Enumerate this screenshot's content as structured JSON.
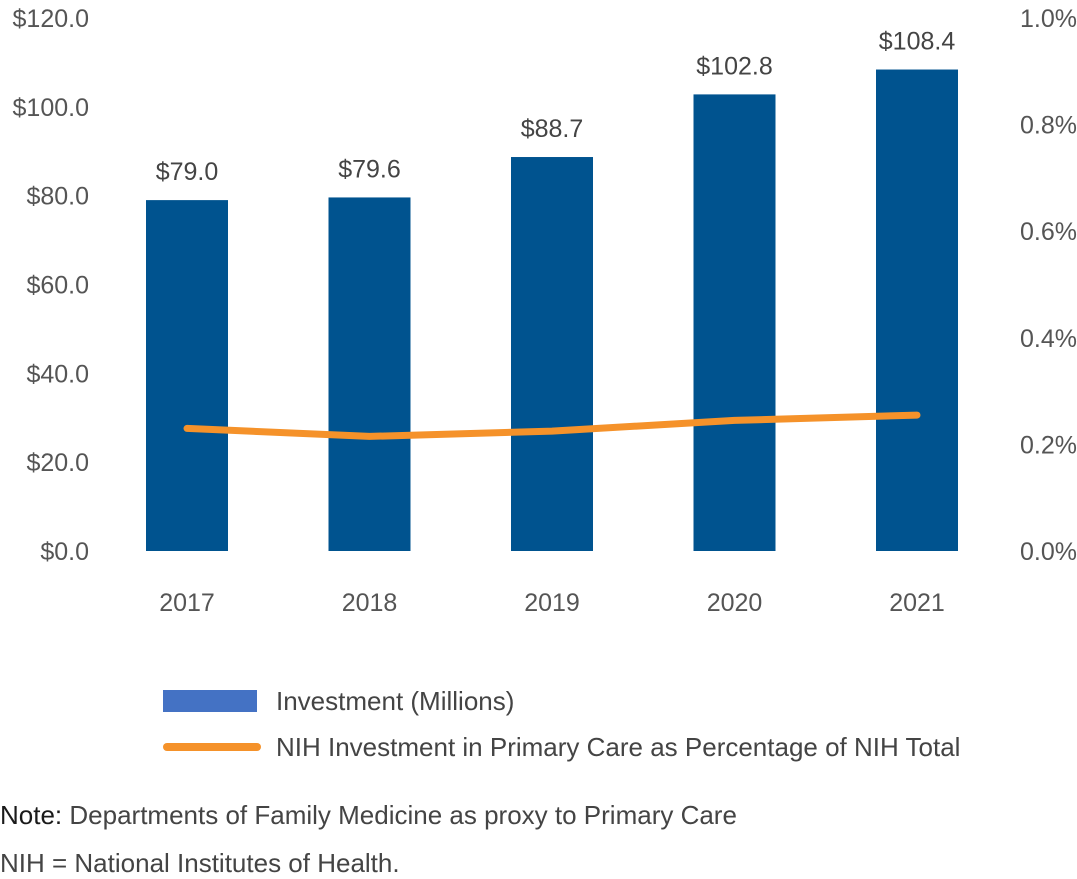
{
  "chart_data": {
    "type": "bar",
    "categories": [
      "2017",
      "2018",
      "2019",
      "2020",
      "2021"
    ],
    "series": [
      {
        "name": "Investment (Millions)",
        "type": "bar",
        "axis": "left",
        "values": [
          79.0,
          79.6,
          88.7,
          102.8,
          108.4
        ],
        "labels": [
          "$79.0",
          "$79.6",
          "$88.7",
          "$102.8",
          "$108.4"
        ]
      },
      {
        "name": "NIH Investment in Primary Care as Percentage of NIH Total",
        "type": "line",
        "axis": "right",
        "values": [
          0.23,
          0.215,
          0.225,
          0.245,
          0.255
        ]
      }
    ],
    "y_left": {
      "ylim": [
        0,
        120
      ],
      "ticks": [
        0,
        20,
        40,
        60,
        80,
        100,
        120
      ],
      "tick_labels": [
        "$0.0",
        "$20.0",
        "$40.0",
        "$60.0",
        "$80.0",
        "$100.0",
        "$120.0"
      ]
    },
    "y_right": {
      "ylim": [
        0,
        1.0
      ],
      "ticks": [
        0,
        0.2,
        0.4,
        0.6,
        0.8,
        1.0
      ],
      "tick_labels": [
        "0.0%",
        "0.2%",
        "0.4%",
        "0.6%",
        "0.8%",
        "1.0%"
      ]
    },
    "grid": false,
    "legend_position": "bottom",
    "colors": {
      "bar": "#00538F",
      "line": "#F5922A"
    }
  },
  "legend": {
    "bar_label": "Investment (Millions)",
    "line_label": "NIH Investment in Primary Care as Percentage of NIH Total"
  },
  "note": {
    "key": "Note:",
    "text": " Departments of Family Medicine as proxy to Primary Care"
  },
  "abbreviation": "NIH = National Institutes of Health."
}
